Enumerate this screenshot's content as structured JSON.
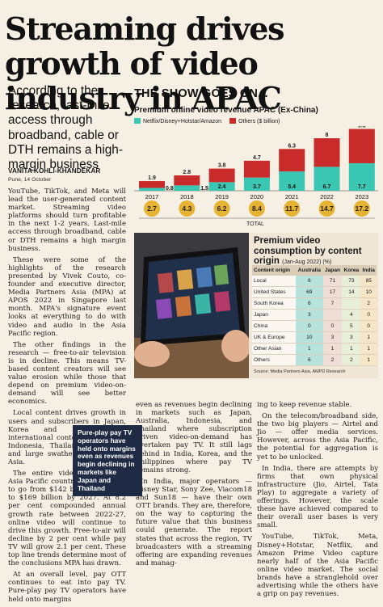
{
  "headline": "Streaming drives growth of video industry in APAC",
  "deck": "According to the research, last-mile access through broadband, cable or DTH remains a high-margin business",
  "byline": "VANITA KOHLI-KHANDEKAR",
  "dateline": "Pune, 14 October",
  "graphic": {
    "kicker": "THE SHOW GOES ON...",
    "chart_title": "Premium online video revenue APAC (Ex-China)",
    "legend": [
      "Netflix/Disney+Hotstar/Amazon",
      "Others ($ billion)"
    ],
    "total_label": "TOTAL",
    "colors": {
      "netflix": "#39c6b2",
      "others": "#c92a2a",
      "total": "#e6b333"
    }
  },
  "chart_data": {
    "type": "bar",
    "stacked": true,
    "categories": [
      "2017",
      "2018",
      "2019",
      "2020",
      "2021",
      "2022",
      "2023"
    ],
    "series": [
      {
        "name": "Netflix/Disney+Hotstar/Amazon",
        "values": [
          0.8,
          1.5,
          2.4,
          3.7,
          5.4,
          6.7,
          7.7
        ]
      },
      {
        "name": "Others ($ billion)",
        "values": [
          1.9,
          2.8,
          3.8,
          4.7,
          6.3,
          8.0,
          9.6
        ]
      }
    ],
    "totals": [
      2.7,
      4.3,
      6.2,
      8.4,
      11.7,
      14.7,
      17.2
    ],
    "title": "Premium online video revenue APAC (Ex-China)",
    "ylim": [
      0,
      17.2
    ],
    "grid": false,
    "legend_position": "top-left"
  },
  "table": {
    "title": "Premium video consumption by content origin",
    "subtitle": "(Jan-Aug 2022) (%)",
    "headers": [
      "Content origin",
      "Australia",
      "Japan",
      "Korea",
      "India"
    ],
    "rows": [
      [
        "Local",
        "6",
        "71",
        "73",
        "85"
      ],
      [
        "United States",
        "69",
        "17",
        "14",
        "10"
      ],
      [
        "South Korea",
        "6",
        "7",
        "",
        "2"
      ],
      [
        "Japan",
        "3",
        "",
        "4",
        "0"
      ],
      [
        "China",
        "0",
        "0",
        "5",
        "0"
      ],
      [
        "UK & Europe",
        "10",
        "3",
        "3",
        "1"
      ],
      [
        "Other Asian",
        "1",
        "1",
        "1",
        "1"
      ],
      [
        "Others",
        "6",
        "2",
        "2",
        "1"
      ]
    ],
    "source": "Source: Media Partners Asia, AMPD Research"
  },
  "pullquote": "Pure-play pay TV operators have held onto margins even as revenues begin declining in markets like Japan and Thailand",
  "body": {
    "col1": [
      "YouTube, TikTok, and Meta will lead the user-generated content market. Streaming video platforms should turn profitable in the next 1-2 years. Last-mile access through broadband, cable or DTH remains a high margin business.",
      "These were some of the highlights of the research presented by Vivek Couto, co-founder and executive director, Media Partners Asia (MPA) at APOS 2022 in Singapore last month. MPA's signature event looks at everything to do with video and audio in the Asia Pacific region.",
      "The other findings in the research — free-to-air television is in decline. This means TV-based content creators will see value erosion while those that depend on premium video-on-demand will see better economics.",
      "Local content drives growth in users and subscribers in Japan, Korea and India, while international content drives it in Indonesia, Thailand, Singapore, and large swathes of Southeast Asia.",
      "The entire video business in Asia Pacific countries is expected to go from $142 billion this year to $169 billion by 2027. At 8.2 per cent compounded annual growth rate between 2022-27, online video will continue to drive this growth. Free-to-air will decline by 2 per cent while pay TV will grow 2.1 per cent. These top line trends determine most of the conclusions MPA has drawn.",
      "At an overall level, pay OTT continues to eat into pay TV. Pure-play pay TV operators have held onto margins"
    ],
    "col2": [
      "even as revenues begin declining in markets such as Japan, Australia, Indonesia, and Thailand where subscription driven video-on-demand has overtaken pay TV. It still lags behind in India, Korea, and the Philippines where pay TV remains strong.",
      "In India, major operators — Disney Star, Sony Zee, Viacom18 and Sun18 — have their own OTT brands. They are, therefore, on the way to capturing the future value that this business could generate. The report states that across the region, TV broadcasters with a streaming offering are expanding revenues and manag-"
    ],
    "col3": [
      "ing to keep revenue stable.",
      "On the telecom/broadband side, the two big players — Airtel and Jio — offer media services. However, across the Asia Pacific, the potential for aggregation is yet to be unlocked.",
      "In India, there are attempts by firms that own physical infrastructure (Jio, Airtel, Tata Play) to aggregate a variety of offerings. However, the scale these have achieved compared to their overall user bases is very small.",
      "YouTube, TikTok, Meta, Disney+Hotstar, Netflix, and Amazon Prime Video capture nearly half of the Asia Pacific online video market. The social brands have a stranglehold over advertising while the others have a grip on pay revenues."
    ]
  }
}
